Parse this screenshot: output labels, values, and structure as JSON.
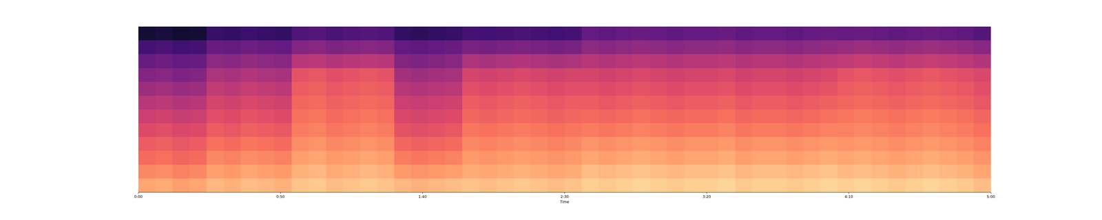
{
  "chart_data": {
    "type": "heatmap",
    "xlabel": "Time",
    "xlim": [
      0,
      300
    ],
    "xticks": [
      {
        "value": 0,
        "label": "0:00"
      },
      {
        "value": 50,
        "label": "0:50"
      },
      {
        "value": 100,
        "label": "1:40"
      },
      {
        "value": 150,
        "label": "2:30"
      },
      {
        "value": 200,
        "label": "3:20"
      },
      {
        "value": 250,
        "label": "4:10"
      },
      {
        "value": 300,
        "label": "5:00"
      }
    ],
    "tick_labels": "x",
    "zlim": [
      -80,
      0
    ],
    "x": [
      3,
      9,
      15,
      21,
      27,
      33,
      39,
      45,
      51,
      57,
      63,
      69,
      75,
      81,
      87,
      93,
      99,
      105,
      111,
      117,
      123,
      129,
      135,
      141,
      147,
      153,
      159,
      165,
      171,
      177,
      183,
      189,
      195,
      201,
      207,
      213,
      219,
      225,
      231,
      237,
      243,
      249,
      255,
      261,
      267,
      273,
      279,
      285,
      291,
      297
    ],
    "cells": [
      [
        -15,
        -14,
        -16,
        -15,
        -12,
        -13,
        -11,
        -12,
        -13,
        -10,
        -9,
        -11,
        -10,
        -9,
        -10,
        -12,
        -13,
        -12,
        -11,
        -10,
        -11,
        -10,
        -9,
        -10,
        -11,
        -10,
        -8,
        -9,
        -8,
        -7,
        -8,
        -9,
        -8,
        -8,
        -7,
        -9,
        -8,
        -8,
        -9,
        -8,
        -7,
        -8,
        -7,
        -8,
        -9,
        -8,
        -7,
        -8,
        -9,
        -11
      ],
      [
        -20,
        -19,
        -21,
        -20,
        -16,
        -17,
        -15,
        -16,
        -17,
        -13,
        -12,
        -14,
        -13,
        -12,
        -13,
        -17,
        -18,
        -17,
        -16,
        -14,
        -15,
        -14,
        -13,
        -14,
        -15,
        -14,
        -11,
        -12,
        -11,
        -10,
        -11,
        -12,
        -11,
        -11,
        -10,
        -12,
        -11,
        -11,
        -12,
        -11,
        -10,
        -12,
        -11,
        -12,
        -13,
        -12,
        -11,
        -12,
        -13,
        -15
      ],
      [
        -25,
        -24,
        -26,
        -25,
        -20,
        -21,
        -19,
        -20,
        -21,
        -16,
        -15,
        -17,
        -16,
        -15,
        -16,
        -22,
        -23,
        -22,
        -21,
        -17,
        -18,
        -17,
        -16,
        -17,
        -18,
        -17,
        -15,
        -16,
        -15,
        -14,
        -15,
        -16,
        -15,
        -15,
        -14,
        -16,
        -15,
        -15,
        -16,
        -15,
        -14,
        -15,
        -14,
        -15,
        -16,
        -15,
        -14,
        -15,
        -16,
        -18
      ],
      [
        -28,
        -27,
        -29,
        -28,
        -24,
        -25,
        -23,
        -24,
        -25,
        -19,
        -18,
        -20,
        -19,
        -18,
        -19,
        -26,
        -27,
        -26,
        -25,
        -20,
        -21,
        -20,
        -19,
        -20,
        -21,
        -20,
        -18,
        -19,
        -18,
        -17,
        -18,
        -19,
        -18,
        -18,
        -17,
        -19,
        -18,
        -18,
        -19,
        -18,
        -17,
        -18,
        -17,
        -18,
        -19,
        -18,
        -17,
        -18,
        -19,
        -21
      ],
      [
        -32,
        -31,
        -33,
        -32,
        -28,
        -29,
        -27,
        -28,
        -29,
        -22,
        -21,
        -23,
        -22,
        -21,
        -22,
        -30,
        -31,
        -30,
        -29,
        -23,
        -24,
        -23,
        -22,
        -23,
        -24,
        -23,
        -22,
        -23,
        -22,
        -21,
        -22,
        -23,
        -22,
        -22,
        -21,
        -23,
        -22,
        -22,
        -23,
        -22,
        -21,
        -21,
        -20,
        -21,
        -22,
        -21,
        -20,
        -21,
        -22,
        -24
      ],
      [
        -36,
        -35,
        -37,
        -36,
        -31,
        -32,
        -30,
        -31,
        -32,
        -24,
        -23,
        -25,
        -24,
        -23,
        -24,
        -33,
        -34,
        -33,
        -32,
        -26,
        -27,
        -26,
        -25,
        -26,
        -27,
        -26,
        -25,
        -26,
        -25,
        -24,
        -25,
        -26,
        -25,
        -25,
        -24,
        -26,
        -25,
        -25,
        -26,
        -25,
        -24,
        -23,
        -22,
        -23,
        -24,
        -23,
        -22,
        -23,
        -24,
        -26
      ],
      [
        -40,
        -39,
        -41,
        -40,
        -34,
        -35,
        -33,
        -34,
        -35,
        -26,
        -25,
        -27,
        -26,
        -25,
        -26,
        -36,
        -37,
        -36,
        -35,
        -28,
        -29,
        -28,
        -27,
        -28,
        -29,
        -28,
        -28,
        -29,
        -28,
        -27,
        -28,
        -29,
        -28,
        -28,
        -27,
        -29,
        -28,
        -28,
        -29,
        -28,
        -27,
        -26,
        -25,
        -26,
        -27,
        -26,
        -25,
        -26,
        -27,
        -29
      ],
      [
        -45,
        -44,
        -46,
        -45,
        -38,
        -39,
        -37,
        -38,
        -39,
        -28,
        -27,
        -29,
        -28,
        -27,
        -28,
        -40,
        -41,
        -40,
        -39,
        -31,
        -32,
        -31,
        -30,
        -31,
        -32,
        -31,
        -31,
        -32,
        -31,
        -30,
        -31,
        -32,
        -31,
        -31,
        -30,
        -32,
        -31,
        -31,
        -32,
        -31,
        -30,
        -28,
        -27,
        -28,
        -29,
        -28,
        -27,
        -28,
        -29,
        -31
      ],
      [
        -50,
        -49,
        -51,
        -50,
        -42,
        -43,
        -41,
        -42,
        -43,
        -30,
        -29,
        -31,
        -30,
        -29,
        -30,
        -44,
        -45,
        -44,
        -43,
        -34,
        -35,
        -34,
        -33,
        -34,
        -35,
        -34,
        -34,
        -35,
        -34,
        -33,
        -34,
        -35,
        -34,
        -34,
        -33,
        -35,
        -34,
        -34,
        -35,
        -34,
        -33,
        -30,
        -29,
        -30,
        -31,
        -30,
        -29,
        -30,
        -31,
        -33
      ],
      [
        -55,
        -54,
        -56,
        -55,
        -48,
        -49,
        -47,
        -48,
        -49,
        -40,
        -39,
        -41,
        -40,
        -39,
        -40,
        -50,
        -51,
        -50,
        -49,
        -42,
        -43,
        -42,
        -41,
        -42,
        -43,
        -42,
        -40,
        -41,
        -40,
        -39,
        -40,
        -41,
        -40,
        -40,
        -39,
        -41,
        -40,
        -40,
        -41,
        -40,
        -39,
        -38,
        -37,
        -38,
        -39,
        -38,
        -37,
        -38,
        -39,
        -41
      ],
      [
        -62,
        -61,
        -63,
        -62,
        -55,
        -56,
        -54,
        -55,
        -56,
        -50,
        -49,
        -51,
        -50,
        -49,
        -50,
        -56,
        -57,
        -56,
        -55,
        -52,
        -53,
        -52,
        -51,
        -52,
        -53,
        -52,
        -48,
        -49,
        -48,
        -47,
        -48,
        -49,
        -48,
        -48,
        -47,
        -49,
        -48,
        -48,
        -49,
        -48,
        -47,
        -46,
        -45,
        -46,
        -47,
        -46,
        -45,
        -46,
        -47,
        -49
      ],
      [
        -72,
        -71,
        -73,
        -72,
        -65,
        -66,
        -64,
        -65,
        -66,
        -60,
        -59,
        -61,
        -60,
        -59,
        -60,
        -66,
        -67,
        -66,
        -65,
        -62,
        -63,
        -62,
        -61,
        -62,
        -63,
        -62,
        -56,
        -57,
        -56,
        -55,
        -56,
        -57,
        -56,
        -56,
        -55,
        -57,
        -56,
        -56,
        -57,
        -56,
        -55,
        -56,
        -55,
        -56,
        -57,
        -56,
        -55,
        -56,
        -57,
        -59
      ]
    ]
  }
}
